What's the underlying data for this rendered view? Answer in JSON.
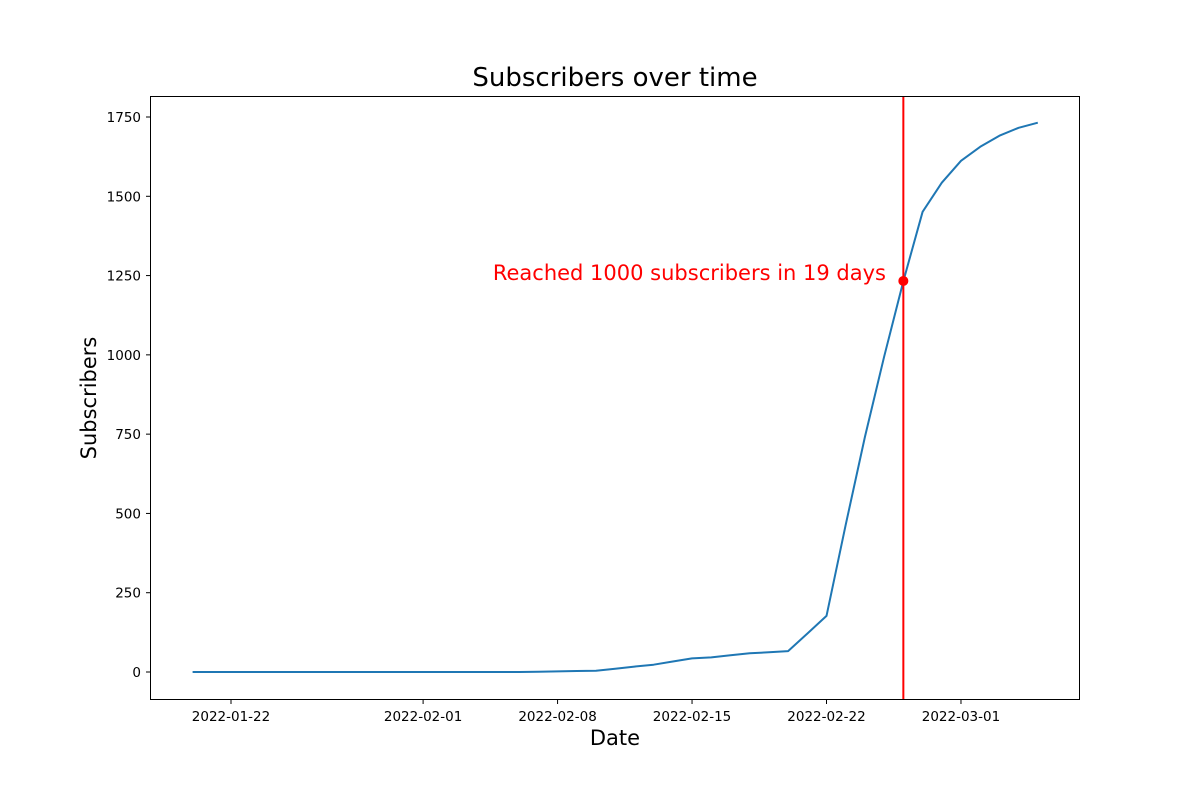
{
  "chart_data": {
    "type": "line",
    "title": "Subscribers over time",
    "xlabel": "Date",
    "ylabel": "Subscribers",
    "x_tick_labels": [
      "2022-01-22",
      "2022-02-01",
      "2022-02-08",
      "2022-02-15",
      "2022-02-22",
      "2022-03-01"
    ],
    "y_tick_labels": [
      "0",
      "250",
      "500",
      "750",
      "1000",
      "1250",
      "1500",
      "1750"
    ],
    "y_ticks": [
      0,
      250,
      500,
      750,
      1000,
      1250,
      1500,
      1750
    ],
    "ylim": [
      -90,
      1815
    ],
    "xlim": [
      "2022-01-18",
      "2022-03-08"
    ],
    "grid": false,
    "legend": null,
    "series": [
      {
        "name": "Subscribers",
        "color": "#1f77b4",
        "x": [
          "2022-01-20",
          "2022-01-21",
          "2022-01-22",
          "2022-01-23",
          "2022-01-24",
          "2022-01-25",
          "2022-01-26",
          "2022-01-27",
          "2022-01-28",
          "2022-01-29",
          "2022-01-30",
          "2022-01-31",
          "2022-02-01",
          "2022-02-02",
          "2022-02-03",
          "2022-02-04",
          "2022-02-05",
          "2022-02-06",
          "2022-02-07",
          "2022-02-08",
          "2022-02-09",
          "2022-02-10",
          "2022-02-11",
          "2022-02-12",
          "2022-02-13",
          "2022-02-14",
          "2022-02-15",
          "2022-02-16",
          "2022-02-17",
          "2022-02-18",
          "2022-02-19",
          "2022-02-20",
          "2022-02-21",
          "2022-02-22",
          "2022-02-23",
          "2022-02-24",
          "2022-02-25",
          "2022-02-26",
          "2022-02-27",
          "2022-02-28",
          "2022-03-01",
          "2022-03-02",
          "2022-03-03",
          "2022-03-04",
          "2022-03-05"
        ],
        "values": [
          0,
          0,
          0,
          0,
          0,
          0,
          0,
          0,
          0,
          0,
          0,
          0,
          0,
          0,
          0,
          0,
          0,
          0,
          1,
          2,
          3,
          4,
          10,
          17,
          23,
          33,
          43,
          46,
          53,
          59,
          62,
          66,
          121,
          177,
          464,
          741,
          994,
          1233,
          1451,
          1543,
          1612,
          1656,
          1691,
          1716,
          1732
        ]
      }
    ],
    "annotations": [
      {
        "type": "vline",
        "x": "2022-02-26",
        "color": "#ff0000"
      },
      {
        "type": "point",
        "x": "2022-02-26",
        "y": 1233,
        "color": "#ff0000"
      },
      {
        "type": "text",
        "text": "Reached 1000 subscribers in 19 days",
        "x": "2022-02-26",
        "y": 1250,
        "color": "#ff0000",
        "align": "right"
      }
    ]
  },
  "figure": {
    "title": "Subscribers over time",
    "xlabel": "Date",
    "ylabel": "Subscribers",
    "annotation_text": "Reached 1000 subscribers in 19 days",
    "line_color": "#1f77b4",
    "marker_color": "#ff0000"
  }
}
